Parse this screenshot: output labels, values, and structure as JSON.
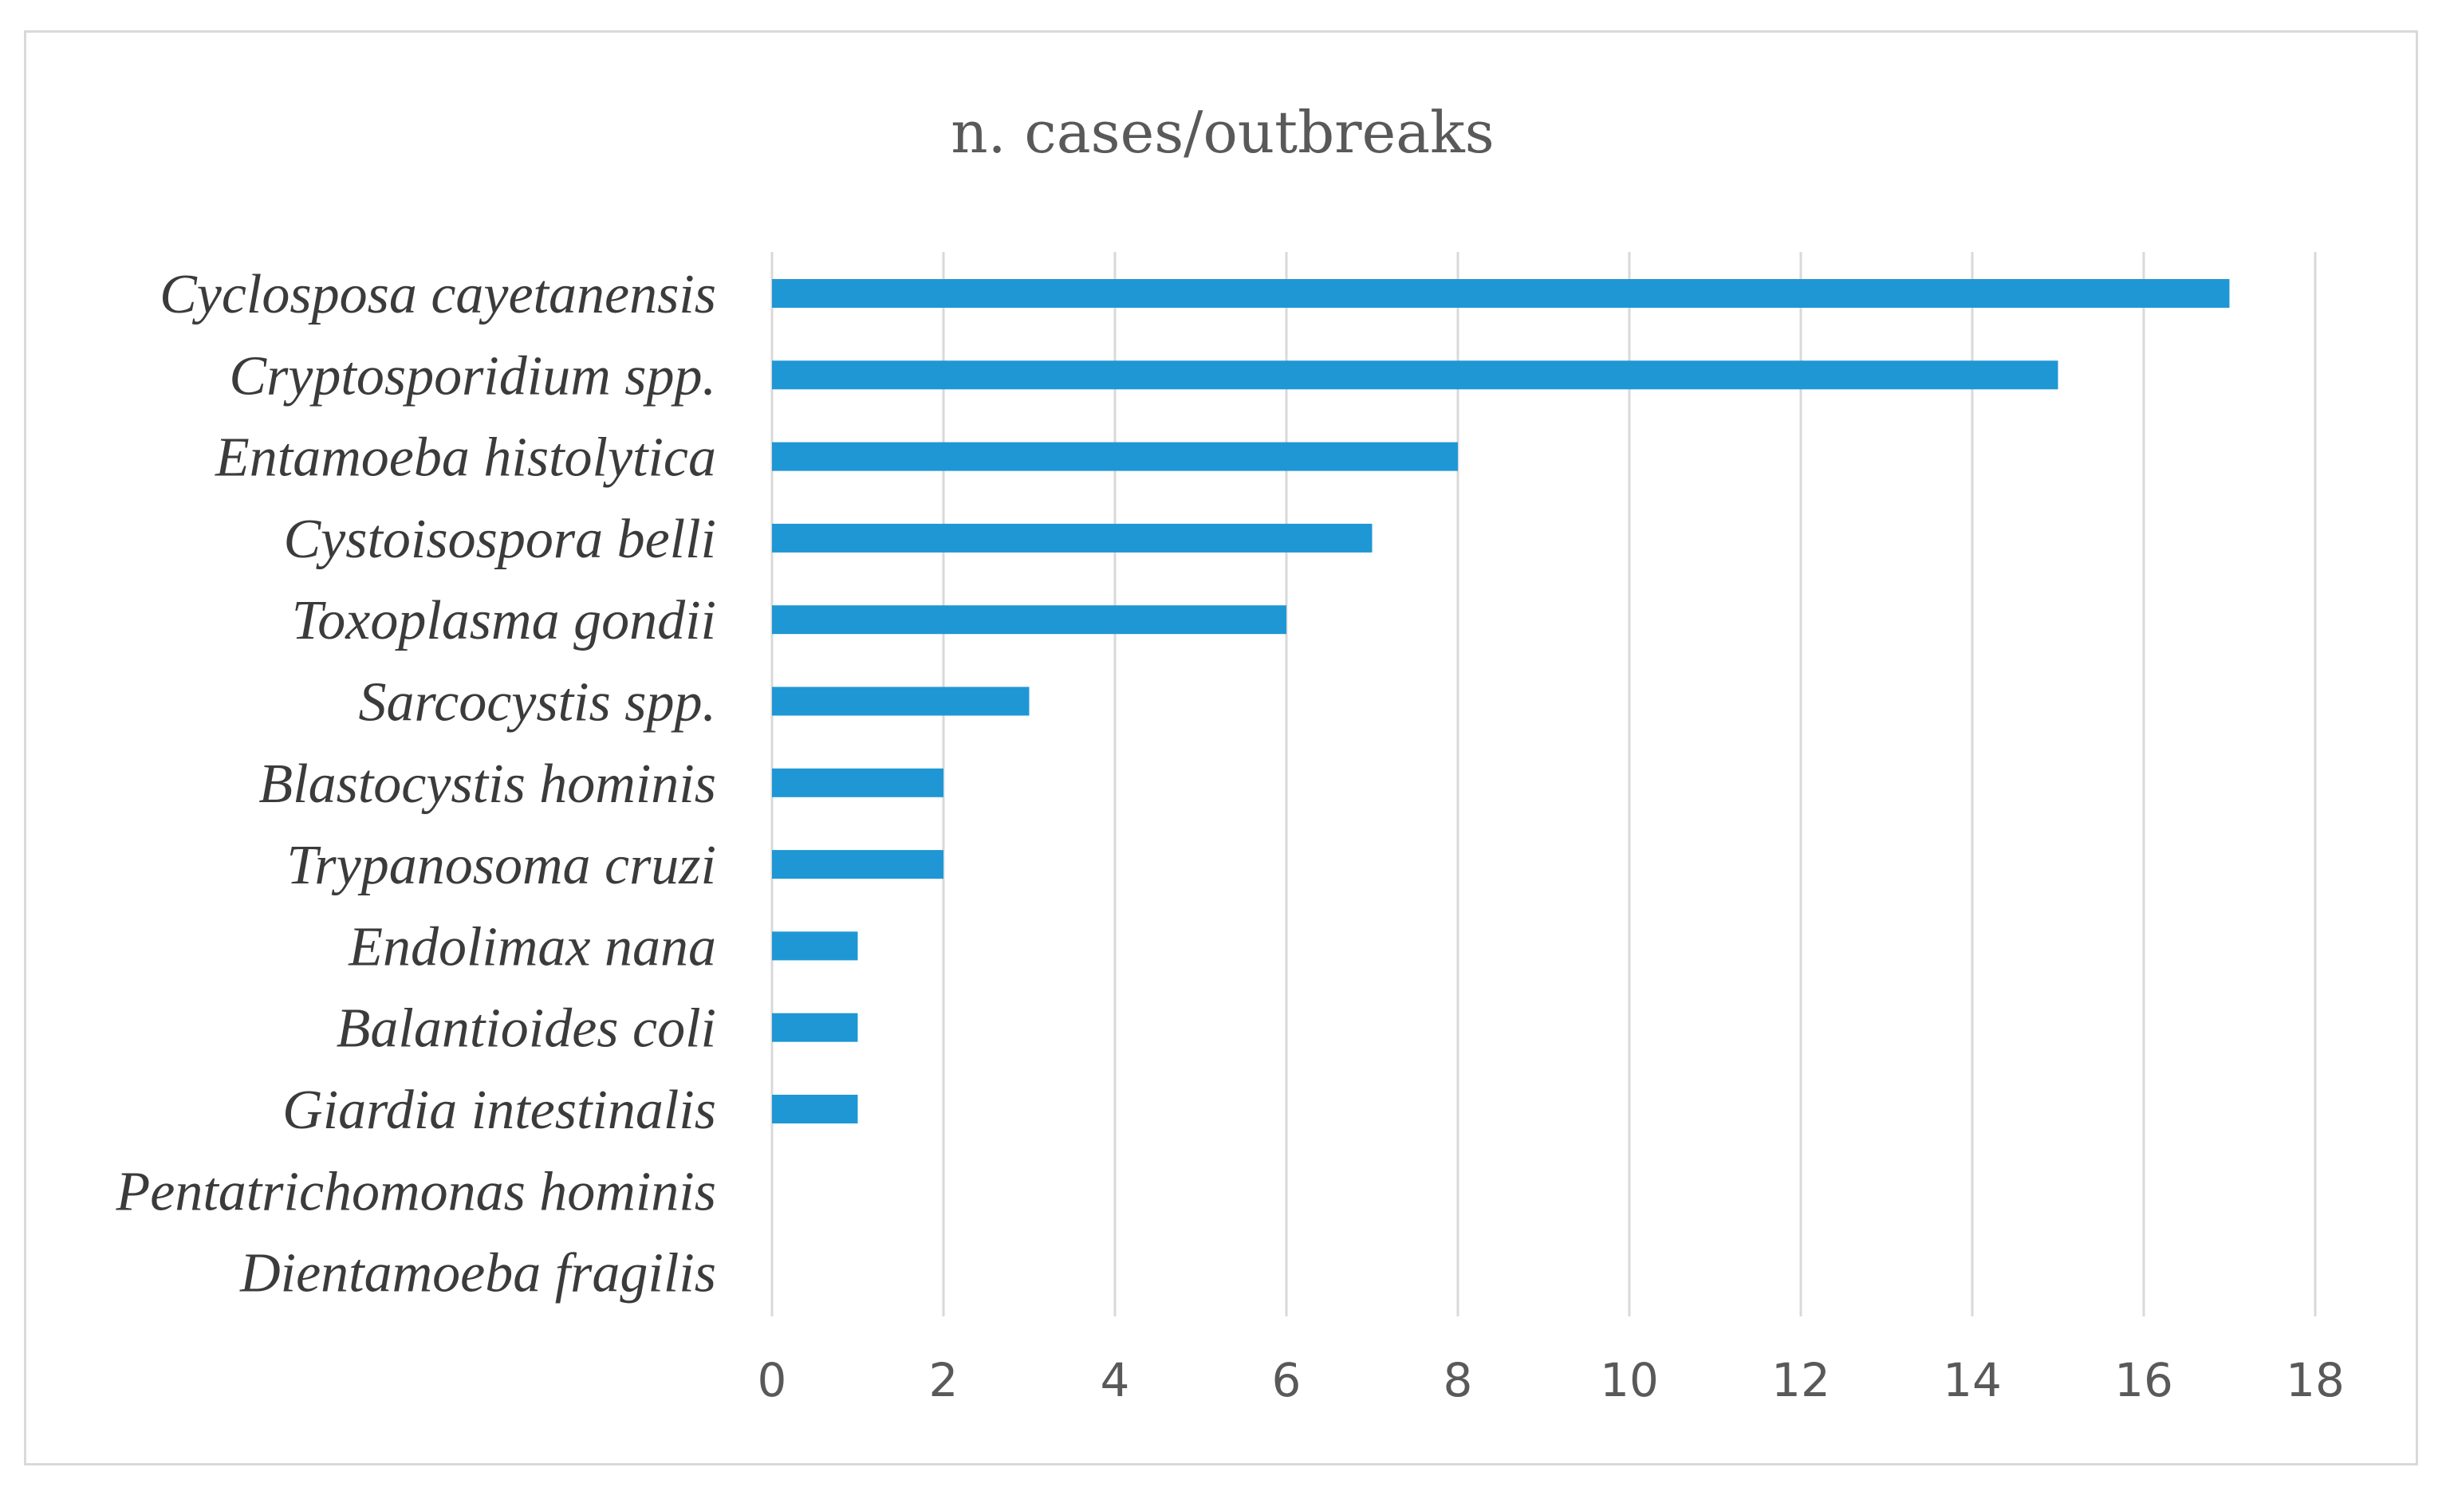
{
  "chart_data": {
    "type": "bar",
    "orientation": "horizontal",
    "title": "n. cases/outbreaks",
    "categories": [
      "Cyclosposa cayetanensis",
      "Cryptosporidium spp.",
      "Entamoeba histolytica",
      "Cystoisospora belli",
      "Toxoplasma gondii",
      "Sarcocystis spp.",
      "Blastocystis hominis",
      "Trypanosoma cruzi",
      "Endolimax nana",
      "Balantioides coli",
      "Giardia intestinalis",
      "Pentatrichomonas hominis",
      "Dientamoeba fragilis"
    ],
    "values": [
      17,
      15,
      8,
      7,
      6,
      3,
      2,
      2,
      1,
      1,
      1,
      0,
      0
    ],
    "xlim": [
      0,
      18
    ],
    "xticks": [
      "0",
      "2",
      "4",
      "6",
      "8",
      "10",
      "12",
      "14",
      "16",
      "18"
    ],
    "grid": "vertical",
    "bar_color": "#1f97d4",
    "xlabel": "",
    "ylabel": ""
  }
}
